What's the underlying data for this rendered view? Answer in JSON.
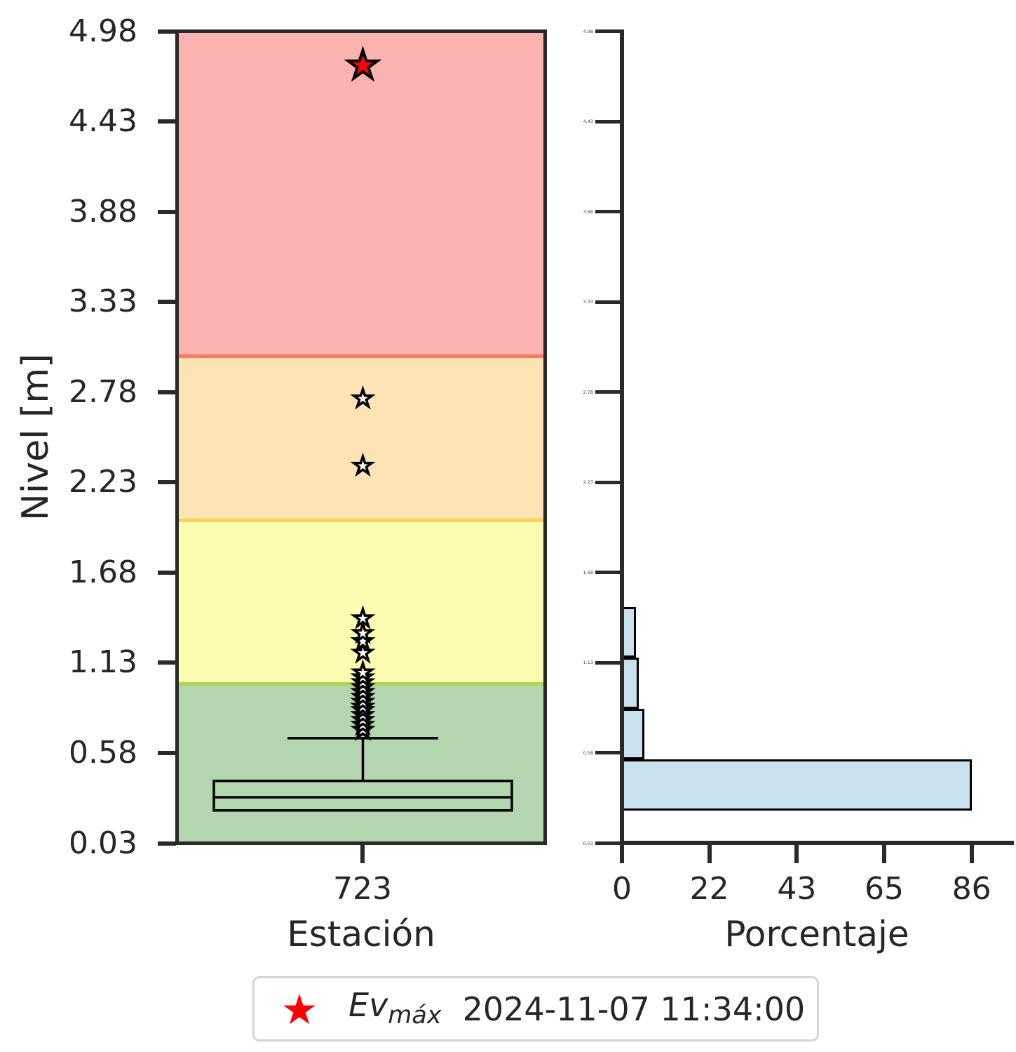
{
  "figure": {
    "background": "#ffffff",
    "text_color": "#262626",
    "spine_color": "#2a2a2a"
  },
  "chart_data": [
    {
      "type": "boxplot",
      "title": "",
      "xlabel": "Estación",
      "ylabel": "Nivel [m]",
      "categories": [
        "723"
      ],
      "ylim": [
        0.03,
        4.98
      ],
      "yticks": [
        4.98,
        4.43,
        3.88,
        3.33,
        2.78,
        2.23,
        1.68,
        1.13,
        0.58,
        0.03
      ],
      "ytick_labels": [
        "4.98",
        "4.43",
        "3.88",
        "3.33",
        "2.78",
        "2.23",
        "1.68",
        "1.13",
        "0.58",
        "0.03"
      ],
      "series": [
        {
          "name": "723",
          "q1": 0.23,
          "median": 0.31,
          "q3": 0.41,
          "whisker_low": 0.23,
          "whisker_high": 0.67,
          "outliers": [
            0.72,
            0.75,
            0.78,
            0.81,
            0.84,
            0.86,
            0.89,
            0.92,
            0.95,
            0.98,
            1.01,
            1.04,
            1.07,
            1.19,
            1.26,
            1.31,
            1.4,
            2.33,
            2.74
          ],
          "event_max": 4.77
        }
      ],
      "bands": [
        {
          "name": "verde",
          "from": 0.03,
          "to": 1.0,
          "color": "#b3d5af",
          "boundary_line_color": "#aed554"
        },
        {
          "name": "amarillo",
          "from": 1.0,
          "to": 2.0,
          "color": "#fdfdb2",
          "boundary_line_color": "#fbd155"
        },
        {
          "name": "naranja",
          "from": 2.0,
          "to": 3.0,
          "color": "#fde2b3",
          "boundary_line_color": "#fb7a5e"
        },
        {
          "name": "rojo",
          "from": 3.0,
          "to": 4.98,
          "color": "#fab3af",
          "boundary_line_color": null
        }
      ],
      "marker_colors": {
        "outlier_fill": "#ffffff",
        "outlier_edge": "#000000",
        "event_fill": "#ff0000",
        "event_edge": "#000000"
      }
    },
    {
      "type": "bar",
      "orientation": "horizontal",
      "xlabel": "Porcentaje",
      "xlim": [
        0,
        96.5
      ],
      "xticks": [
        0,
        21.6,
        43.2,
        64.8,
        86.4
      ],
      "xtick_labels": [
        "0",
        "22",
        "43",
        "65",
        "86"
      ],
      "ylim": [
        0.03,
        4.98
      ],
      "yticks": [
        4.98,
        4.43,
        3.88,
        3.33,
        2.78,
        2.23,
        1.68,
        1.13,
        0.58,
        0.03
      ],
      "ytick_labels": [
        "4.98",
        "4.43",
        "3.88",
        "3.33",
        "2.78",
        "2.23",
        "1.68",
        "1.13",
        "0.58",
        "0.03"
      ],
      "bins": [
        {
          "from": 0.23,
          "to": 0.54,
          "pct": 86.4
        },
        {
          "from": 0.54,
          "to": 0.85,
          "pct": 5.5
        },
        {
          "from": 0.85,
          "to": 1.16,
          "pct": 4.1
        },
        {
          "from": 1.16,
          "to": 1.47,
          "pct": 3.4
        }
      ],
      "bar_color": "#c7e1ed",
      "bar_edge_color": "#000000"
    }
  ],
  "legend": {
    "symbol": "Ev",
    "symbol_sub": "máx",
    "datetime": "2024-11-07 11:34:00",
    "marker": "star-icon",
    "marker_color": "#ff0000",
    "border_color": "#d4d4d4"
  }
}
